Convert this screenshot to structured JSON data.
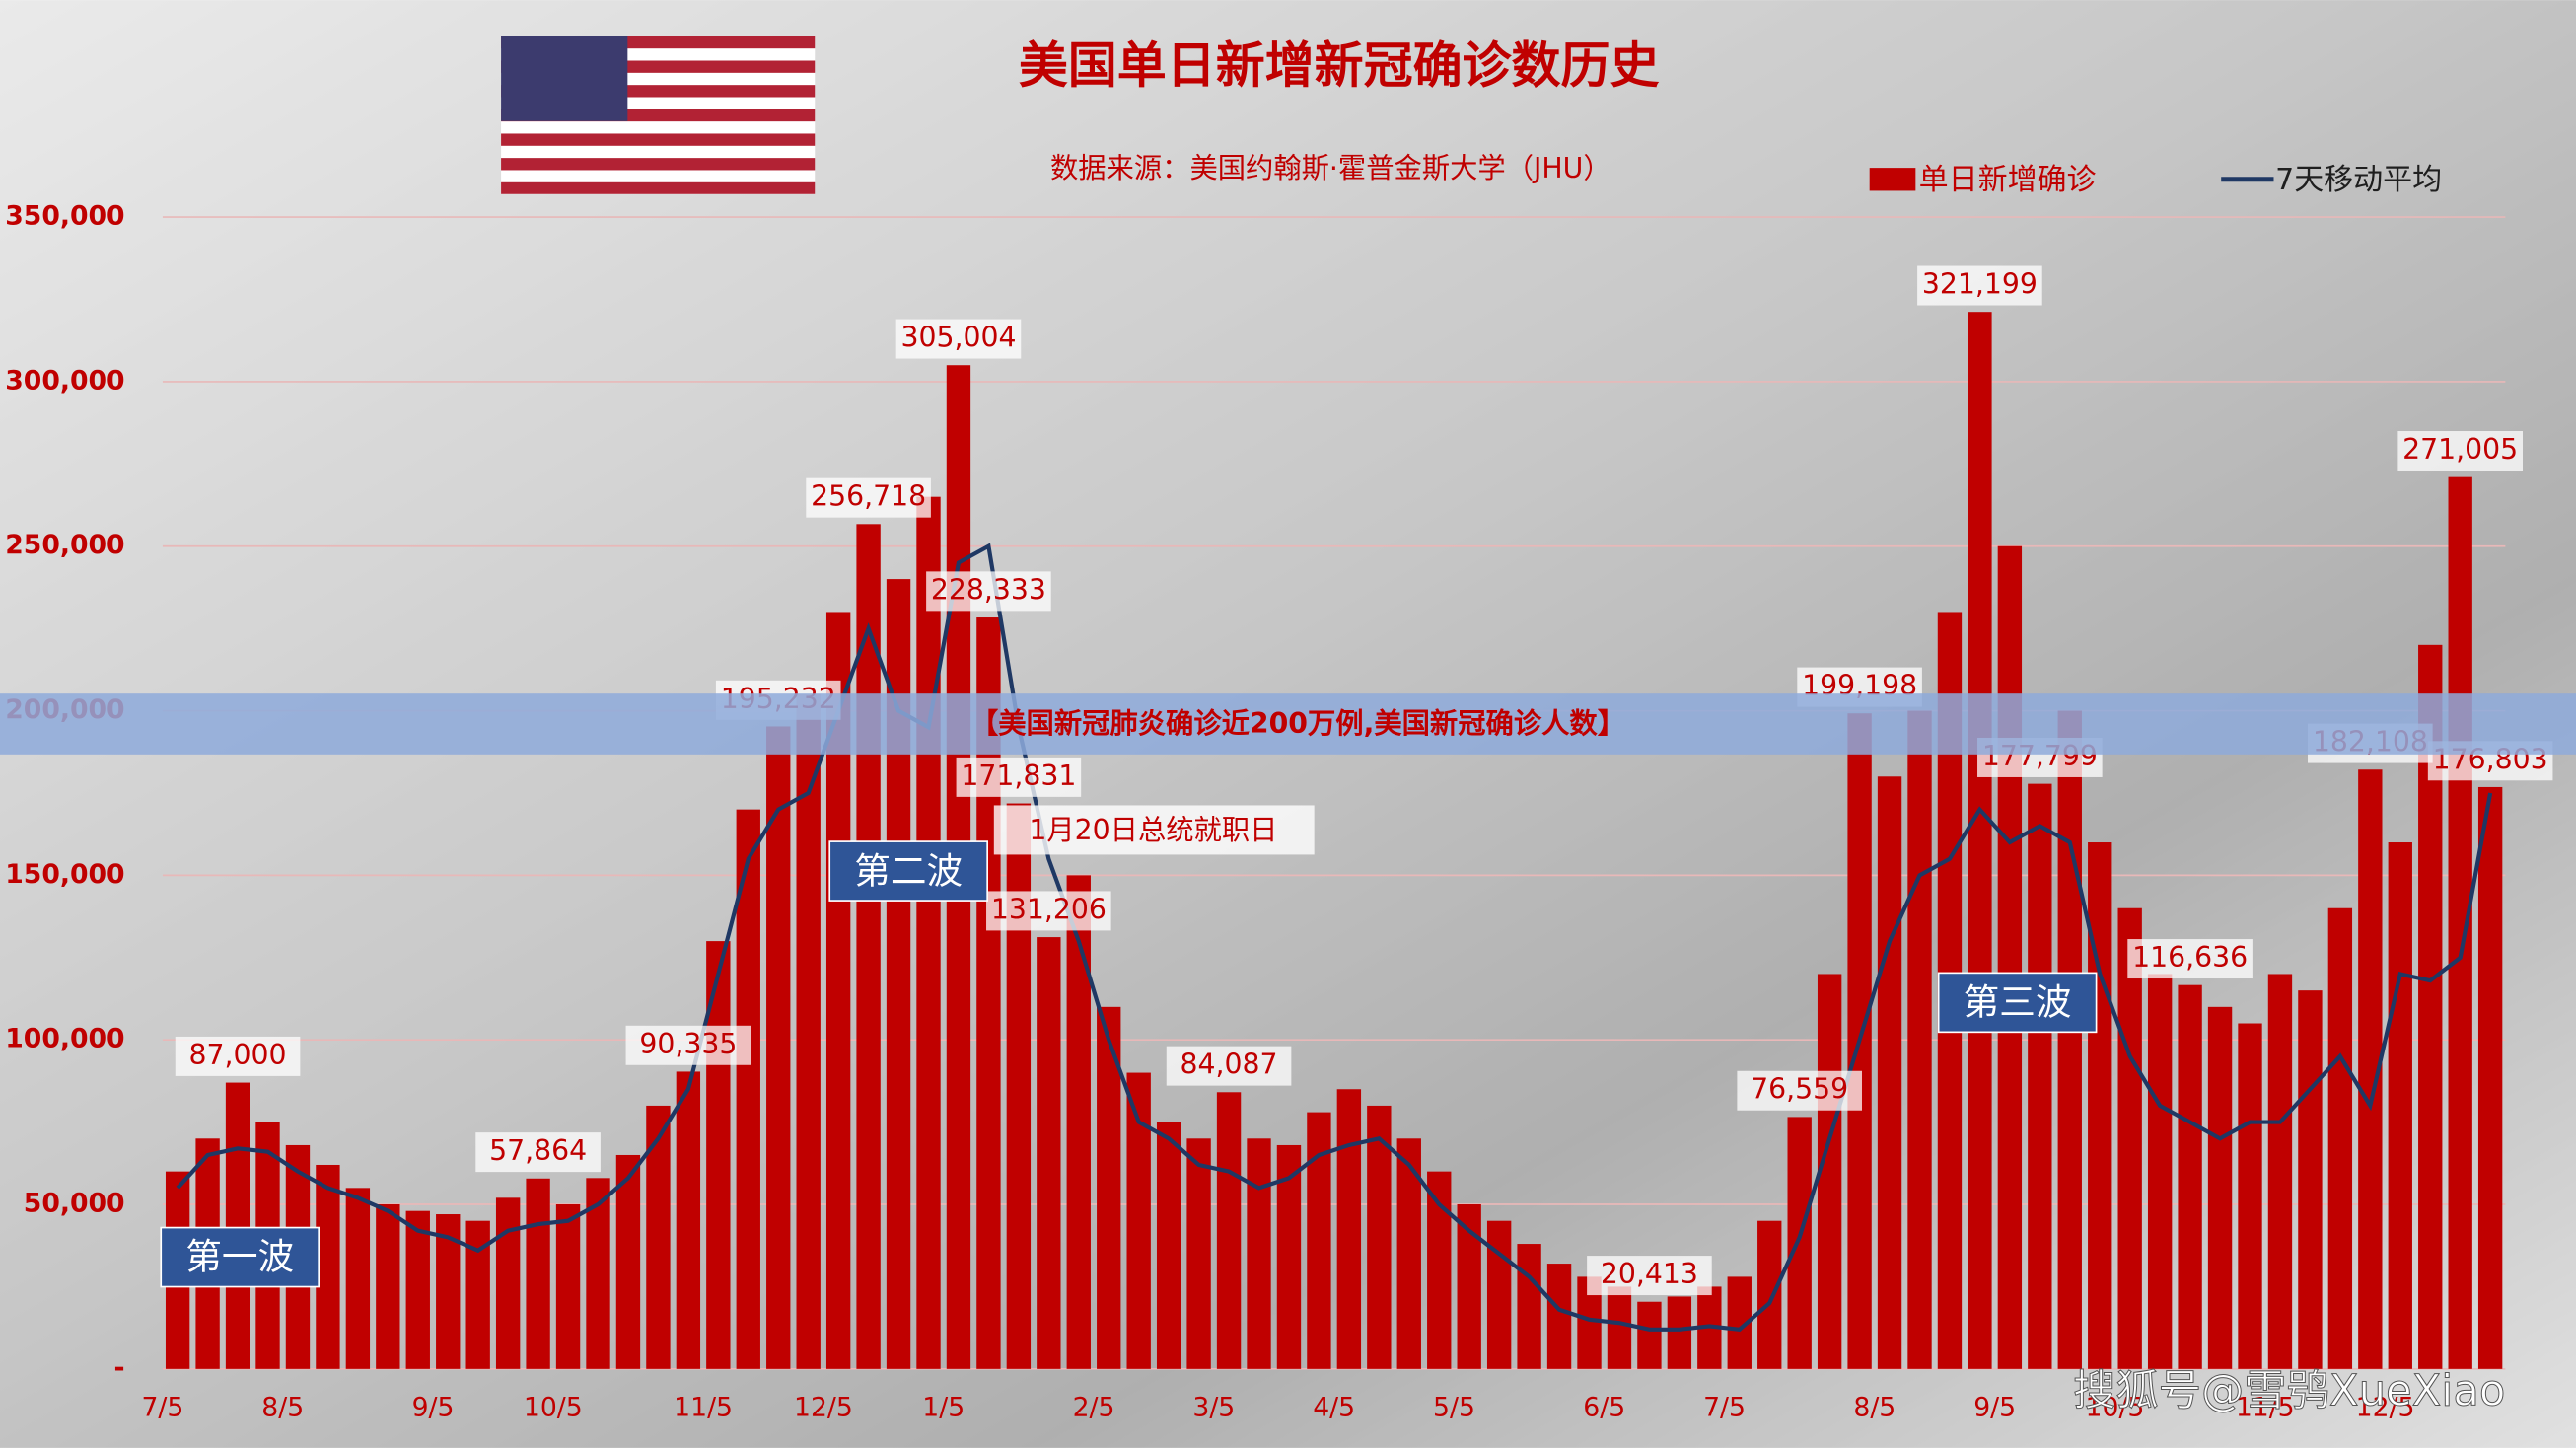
{
  "chart_data": {
    "type": "bar",
    "title": "美国单日新增新冠确诊数历史",
    "subtitle": "数据来源：美国约翰斯·霍普金斯大学（JHU）",
    "banner": "【美国新冠肺炎确诊近200万例,美国新冠确诊人数】",
    "watermark": "搜狐号@雪鸮XueXiao",
    "annotations": [
      "第一波",
      "第二波",
      "第三波",
      "1月20日总统就职日"
    ],
    "categories": [
      "7/5",
      null,
      null,
      null,
      "8/5",
      null,
      null,
      null,
      null,
      "9/5",
      null,
      null,
      null,
      "10/5",
      null,
      null,
      null,
      null,
      "11/5",
      null,
      null,
      null,
      "12/5",
      null,
      null,
      null,
      "1/5",
      null,
      null,
      null,
      null,
      "2/5",
      null,
      null,
      null,
      "3/5",
      null,
      null,
      null,
      "4/5",
      null,
      null,
      null,
      "5/5",
      null,
      null,
      null,
      null,
      "6/5",
      null,
      null,
      null,
      "7/5",
      null,
      null,
      null,
      null,
      "8/5",
      null,
      null,
      null,
      "9/5",
      null,
      null,
      null,
      "10/5",
      null,
      null,
      null,
      null,
      "11/5",
      null,
      null,
      null,
      "12/5",
      null,
      null,
      null
    ],
    "series": [
      {
        "name": "单日新增确诊",
        "color": "#c00000",
        "values": [
          60000,
          70000,
          87000,
          75000,
          68000,
          62000,
          55000,
          50000,
          48000,
          47000,
          45000,
          52000,
          57864,
          50000,
          58000,
          65000,
          80000,
          90335,
          130000,
          170000,
          195232,
          205000,
          230000,
          256718,
          240000,
          265000,
          305004,
          228333,
          171831,
          131206,
          150000,
          110000,
          90000,
          75000,
          70000,
          84087,
          70000,
          68000,
          78000,
          85000,
          80000,
          70000,
          60000,
          50000,
          45000,
          38000,
          32000,
          28000,
          25000,
          20413,
          22000,
          25000,
          28000,
          45000,
          76559,
          120000,
          199198,
          180000,
          200000,
          230000,
          321199,
          250000,
          177799,
          200000,
          160000,
          140000,
          120000,
          116636,
          110000,
          105000,
          120000,
          115000,
          140000,
          182108,
          160000,
          220000,
          271005,
          176803
        ],
        "value_labels": [
          null,
          null,
          "87,000",
          null,
          null,
          null,
          null,
          null,
          null,
          null,
          null,
          null,
          "57,864",
          null,
          null,
          null,
          null,
          "90,335",
          null,
          null,
          "195,232",
          null,
          null,
          "256,718",
          null,
          null,
          "305,004",
          "228,333",
          "171,831",
          "131,206",
          null,
          null,
          null,
          null,
          null,
          "84,087",
          null,
          null,
          null,
          null,
          null,
          null,
          null,
          null,
          null,
          null,
          null,
          null,
          null,
          "20,413",
          null,
          null,
          null,
          null,
          "76,559",
          null,
          "199,198",
          null,
          null,
          null,
          "321,199",
          null,
          "177,799",
          null,
          null,
          null,
          null,
          "116,636",
          null,
          null,
          null,
          null,
          null,
          "182,108",
          null,
          null,
          "271,005",
          "176,803"
        ]
      },
      {
        "name": "7天移动平均",
        "color": "#1f3864",
        "values": [
          55000,
          65000,
          67000,
          66000,
          60000,
          55000,
          52000,
          48000,
          42000,
          40000,
          36000,
          42000,
          44000,
          45000,
          50000,
          58000,
          70000,
          85000,
          120000,
          155000,
          170000,
          175000,
          200000,
          225000,
          200000,
          195000,
          245000,
          250000,
          195000,
          155000,
          130000,
          100000,
          75000,
          70000,
          62000,
          60000,
          55000,
          58000,
          65000,
          68000,
          70000,
          62000,
          50000,
          42000,
          35000,
          28000,
          18000,
          15000,
          14000,
          12000,
          12000,
          13000,
          12000,
          20000,
          40000,
          70000,
          100000,
          130000,
          150000,
          155000,
          170000,
          160000,
          165000,
          160000,
          120000,
          95000,
          80000,
          75000,
          70000,
          75000,
          75000,
          85000,
          95000,
          80000,
          120000,
          118000,
          125000,
          175000
        ]
      }
    ],
    "ylim": [
      0,
      350000
    ],
    "yticks": [
      {
        "value": 0,
        "label": "-"
      },
      {
        "value": 50000,
        "label": "50,000"
      },
      {
        "value": 100000,
        "label": "100,000"
      },
      {
        "value": 150000,
        "label": "150,000"
      },
      {
        "value": 200000,
        "label": "200,000"
      },
      {
        "value": 250000,
        "label": "250,000"
      },
      {
        "value": 300000,
        "label": "300,000"
      },
      {
        "value": 350000,
        "label": "350,000"
      }
    ],
    "grid": true,
    "legend": "top-right"
  }
}
